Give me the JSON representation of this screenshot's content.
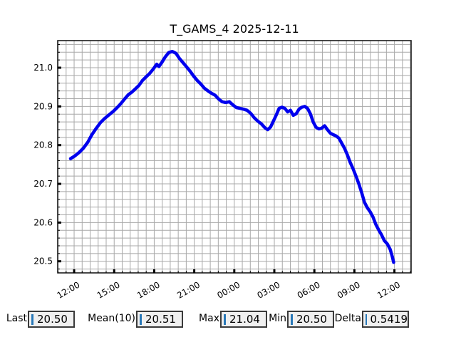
{
  "chart_data": {
    "type": "line",
    "title": "T_GAMS_4 2025-12-11",
    "grid": {
      "show": true,
      "color": "#a8a8a8"
    },
    "spine_color": "#1a1a1a",
    "x_axis": {
      "unit": "hours_after_12:00",
      "min": -1.23,
      "max": 25.25,
      "tick_hours": [
        0,
        3,
        6,
        9,
        12,
        15,
        18,
        21,
        24
      ],
      "tick_labels": [
        "12:00",
        "15:00",
        "18:00",
        "21:00",
        "00:00",
        "03:00",
        "06:00",
        "09:00",
        "12:00"
      ],
      "minor_step": 0.6
    },
    "y_axis": {
      "min": 20.47,
      "max": 21.07,
      "major_ticks": [
        20.5,
        20.6,
        20.7,
        20.8,
        20.9,
        21.0
      ],
      "tick_labels": [
        "20.5",
        "20.6",
        "20.7",
        "20.8",
        "20.9",
        "21.0"
      ],
      "minor_step": 0.02
    },
    "series": [
      {
        "name": "T_GAMS_4",
        "color": "#0000ee",
        "points": [
          [
            -0.27,
            20.765
          ],
          [
            0.05,
            20.772
          ],
          [
            0.37,
            20.781
          ],
          [
            0.69,
            20.792
          ],
          [
            1.01,
            20.807
          ],
          [
            1.33,
            20.827
          ],
          [
            1.65,
            20.843
          ],
          [
            1.97,
            20.858
          ],
          [
            2.29,
            20.869
          ],
          [
            2.61,
            20.878
          ],
          [
            2.93,
            20.887
          ],
          [
            3.25,
            20.898
          ],
          [
            3.52,
            20.908
          ],
          [
            3.78,
            20.919
          ],
          [
            4.05,
            20.93
          ],
          [
            4.32,
            20.937
          ],
          [
            4.58,
            20.945
          ],
          [
            4.85,
            20.954
          ],
          [
            5.12,
            20.967
          ],
          [
            5.38,
            20.976
          ],
          [
            5.65,
            20.985
          ],
          [
            5.92,
            20.996
          ],
          [
            6.19,
            21.009
          ],
          [
            6.35,
            21.003
          ],
          [
            6.56,
            21.013
          ],
          [
            6.83,
            21.028
          ],
          [
            7.09,
            21.039
          ],
          [
            7.36,
            21.042
          ],
          [
            7.63,
            21.037
          ],
          [
            7.89,
            21.024
          ],
          [
            8.16,
            21.013
          ],
          [
            8.43,
            21.002
          ],
          [
            8.69,
            20.991
          ],
          [
            8.96,
            20.978
          ],
          [
            9.23,
            20.967
          ],
          [
            9.49,
            20.958
          ],
          [
            9.76,
            20.947
          ],
          [
            10.03,
            20.94
          ],
          [
            10.29,
            20.934
          ],
          [
            10.56,
            20.929
          ],
          [
            10.83,
            20.919
          ],
          [
            11.09,
            20.912
          ],
          [
            11.36,
            20.91
          ],
          [
            11.63,
            20.912
          ],
          [
            11.89,
            20.904
          ],
          [
            12.16,
            20.897
          ],
          [
            12.43,
            20.895
          ],
          [
            12.69,
            20.893
          ],
          [
            12.96,
            20.89
          ],
          [
            13.23,
            20.882
          ],
          [
            13.49,
            20.871
          ],
          [
            13.76,
            20.862
          ],
          [
            14.03,
            20.855
          ],
          [
            14.29,
            20.845
          ],
          [
            14.51,
            20.84
          ],
          [
            14.72,
            20.847
          ],
          [
            14.93,
            20.862
          ],
          [
            15.15,
            20.878
          ],
          [
            15.36,
            20.895
          ],
          [
            15.57,
            20.898
          ],
          [
            15.79,
            20.895
          ],
          [
            16.0,
            20.886
          ],
          [
            16.21,
            20.89
          ],
          [
            16.42,
            20.877
          ],
          [
            16.64,
            20.881
          ],
          [
            16.85,
            20.893
          ],
          [
            17.06,
            20.898
          ],
          [
            17.28,
            20.9
          ],
          [
            17.49,
            20.895
          ],
          [
            17.7,
            20.881
          ],
          [
            17.92,
            20.859
          ],
          [
            18.13,
            20.846
          ],
          [
            18.34,
            20.842
          ],
          [
            18.56,
            20.844
          ],
          [
            18.77,
            20.85
          ],
          [
            18.98,
            20.84
          ],
          [
            19.2,
            20.831
          ],
          [
            19.41,
            20.827
          ],
          [
            19.62,
            20.824
          ],
          [
            19.84,
            20.818
          ],
          [
            20.05,
            20.805
          ],
          [
            20.26,
            20.792
          ],
          [
            20.48,
            20.774
          ],
          [
            20.69,
            20.755
          ],
          [
            20.9,
            20.739
          ],
          [
            21.12,
            20.72
          ],
          [
            21.33,
            20.7
          ],
          [
            21.54,
            20.678
          ],
          [
            21.76,
            20.652
          ],
          [
            21.97,
            20.638
          ],
          [
            22.18,
            20.628
          ],
          [
            22.4,
            20.614
          ],
          [
            22.61,
            20.595
          ],
          [
            22.82,
            20.581
          ],
          [
            23.04,
            20.568
          ],
          [
            23.25,
            20.553
          ],
          [
            23.46,
            20.545
          ],
          [
            23.68,
            20.531
          ],
          [
            23.84,
            20.512
          ],
          [
            23.94,
            20.497
          ]
        ]
      }
    ]
  },
  "stats": {
    "entry_bg": "#f0f0f0",
    "cursor_color": "#2878b8",
    "items": [
      {
        "label": "Last",
        "value": "20.50"
      },
      {
        "label": "Mean(10)",
        "value": "20.51"
      },
      {
        "label": "Max",
        "value": "21.04"
      },
      {
        "label": "Min",
        "value": "20.50"
      },
      {
        "label": "Delta",
        "value": "0.5419"
      }
    ]
  }
}
